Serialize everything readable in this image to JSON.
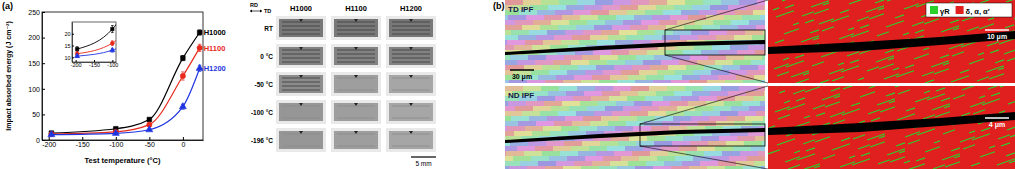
{
  "chart_data": {
    "type": "line",
    "annotations": [
      "(a)"
    ],
    "x_label": "Test temperature (°C)",
    "y_label": "Impact absorbed energy (J cm⁻²)",
    "x": [
      -196,
      -100,
      -50,
      0,
      25
    ],
    "xlim": [
      -210,
      30
    ],
    "xticks": [
      -200,
      -150,
      -100,
      -50,
      0
    ],
    "ylim": [
      0,
      250
    ],
    "yticks": [
      0,
      50,
      100,
      150,
      200,
      250
    ],
    "series": [
      {
        "name": "H1000",
        "color": "#000000",
        "marker": "square",
        "values": [
          13.5,
          22,
          40,
          160,
          210
        ],
        "errors": [
          1,
          1.5,
          3,
          5,
          5
        ]
      },
      {
        "name": "H1100",
        "color": "#e8291c",
        "marker": "circle",
        "values": [
          11.5,
          16,
          30,
          125,
          180
        ],
        "errors": [
          0.8,
          1,
          2.5,
          8,
          7
        ]
      },
      {
        "name": "H1200",
        "color": "#1f35e0",
        "marker": "triangle",
        "values": [
          10.5,
          13,
          20,
          65,
          140
        ],
        "errors": [
          0.6,
          0.8,
          2,
          5,
          6
        ]
      }
    ],
    "inset": {
      "xlim": [
        -210,
        -90
      ],
      "xticks": [
        -200,
        -150,
        -100
      ],
      "ylim": [
        8,
        25
      ],
      "yticks": [
        10,
        15,
        20
      ]
    }
  },
  "photos": {
    "orientation": {
      "top": "RD",
      "side": "TD"
    },
    "columns": [
      "H1000",
      "H1100",
      "H1200"
    ],
    "rows": [
      "RT",
      "0 °C",
      "-50 °C",
      "-100 °C",
      "-196 °C"
    ],
    "scale_bar": "5 mm"
  },
  "micrographs": {
    "panel_label": "(b)",
    "maps": [
      {
        "label": "TD IPF",
        "scale_bar": "30 μm",
        "zoom_scale_bar": "10 μm"
      },
      {
        "label": "ND IPF",
        "zoom_scale_bar": "4 μm"
      }
    ],
    "legend": [
      {
        "label": "γR",
        "color": "#2bd12b"
      },
      {
        "label": "δ, α, α′",
        "color": "#e01f1f"
      }
    ]
  }
}
